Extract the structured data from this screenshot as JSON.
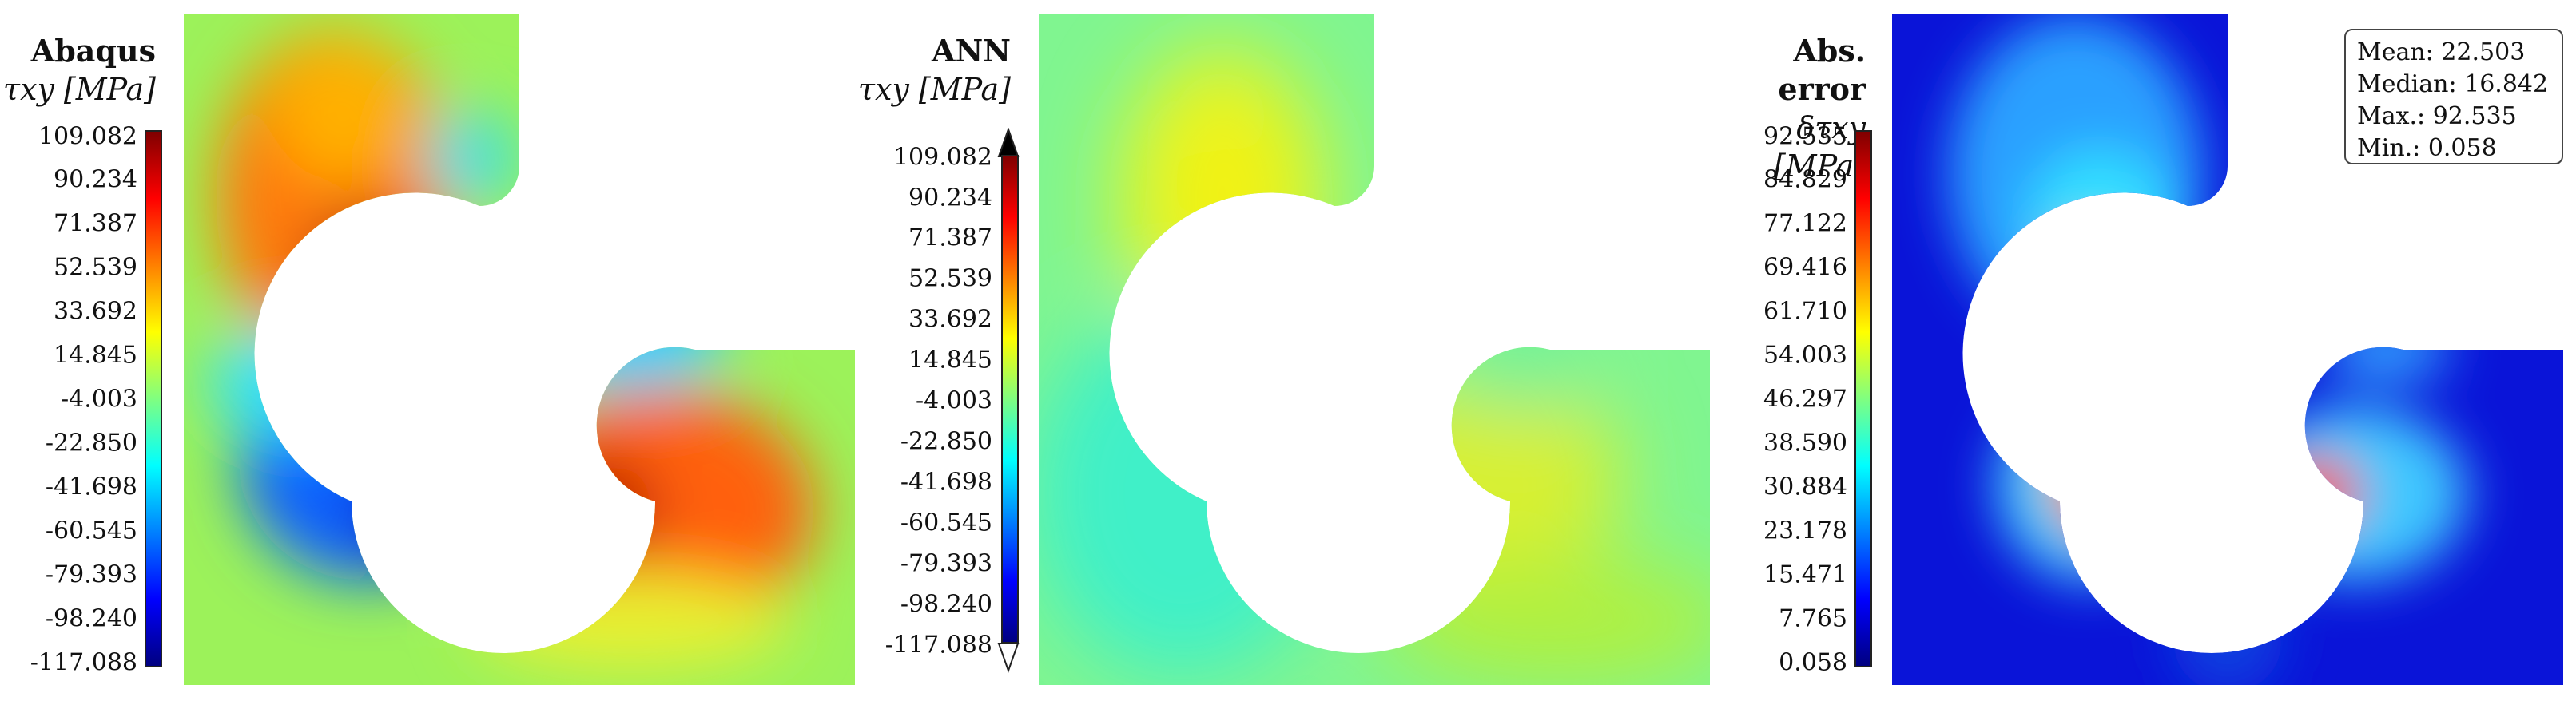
{
  "panels": [
    {
      "title": "Abaqus",
      "subtitle": "τxy [MPa]",
      "ticks": [
        "109.082",
        "90.234",
        "71.387",
        "52.539",
        "33.692",
        "14.845",
        "-4.003",
        "-22.850",
        "-41.698",
        "-60.545",
        "-79.393",
        "-98.240",
        "-117.088"
      ]
    },
    {
      "title": "ANN",
      "subtitle": "τxy [MPa]",
      "ticks": [
        "109.082",
        "90.234",
        "71.387",
        "52.539",
        "33.692",
        "14.845",
        "-4.003",
        "-22.850",
        "-41.698",
        "-60.545",
        "-79.393",
        "-98.240",
        "-117.088"
      ]
    },
    {
      "title": "Abs. error",
      "subtitle": "δτxy [MPa]",
      "ticks": [
        "92.535",
        "84.829",
        "77.122",
        "69.416",
        "61.710",
        "54.003",
        "46.297",
        "38.590",
        "30.884",
        "23.178",
        "15.471",
        "7.765",
        "0.058"
      ]
    }
  ],
  "stats": {
    "mean": "Mean: 22.503",
    "median": "Median: 16.842",
    "max": "Max.: 92.535",
    "min": "Min.: 0.058"
  },
  "colormap": "jet"
}
